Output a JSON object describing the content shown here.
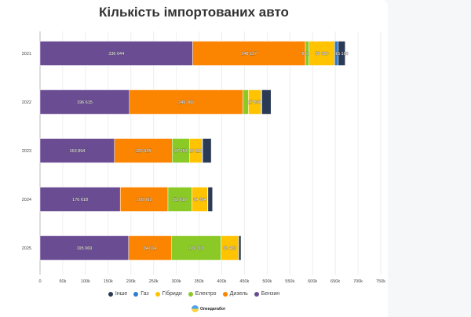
{
  "chart_data": {
    "type": "bar",
    "orientation": "horizontal",
    "stacked": true,
    "title": "Кількість імпортованих авто",
    "categories": [
      "2021",
      "2022",
      "2023",
      "2024",
      "2025"
    ],
    "xlim": [
      0,
      750000
    ],
    "xticks": [
      "0",
      "50k",
      "100k",
      "150k",
      "200k",
      "250k",
      "300k",
      "350k",
      "400k",
      "450k",
      "500k",
      "550k",
      "600k",
      "650k",
      "700k",
      "750k"
    ],
    "grid": true,
    "legend_position": "bottom",
    "series": [
      {
        "name": "Бензин",
        "color": "#6a4c93",
        "values": [
          336044,
          196615,
          163894,
          176618,
          195069
        ],
        "labels": [
          "336 044",
          "196 615",
          "163 894",
          "176 618",
          "195 069"
        ]
      },
      {
        "name": "Дизель",
        "color": "#fb8500",
        "values": [
          248127,
          249966,
          126925,
          105062,
          94014
        ],
        "labels": [
          "248 127",
          "249 966",
          "126 925",
          "105 062",
          "94 014"
        ]
      },
      {
        "name": "Електро",
        "color": "#8ac926",
        "values": [
          8017,
          12000,
          37953,
          52610,
          109309
        ],
        "labels": [
          "8 017",
          "",
          "37 953",
          "52 610",
          "109 309"
        ]
      },
      {
        "name": "Гібриди",
        "color": "#ffc300",
        "values": [
          56380,
          27897,
          28110,
          34364,
          38483
        ],
        "labels": [
          "56 380",
          "27 897",
          "28 110",
          "34 364",
          "38 483"
        ]
      },
      {
        "name": "Газ",
        "color": "#2d7dd2",
        "values": [
          8000,
          2000,
          1000,
          1000,
          500
        ],
        "labels": [
          "",
          "",
          "",
          "",
          ""
        ]
      },
      {
        "name": "Інше",
        "color": "#2b3a55",
        "values": [
          15183,
          20000,
          19000,
          10000,
          5000
        ],
        "labels": [
          "15 183",
          "",
          "",
          "",
          ""
        ]
      }
    ],
    "legend_order": [
      "Інше",
      "Газ",
      "Гібриди",
      "Електро",
      "Дизель",
      "Бензин"
    ]
  },
  "branding": {
    "logo_text": "Опендатабот"
  }
}
